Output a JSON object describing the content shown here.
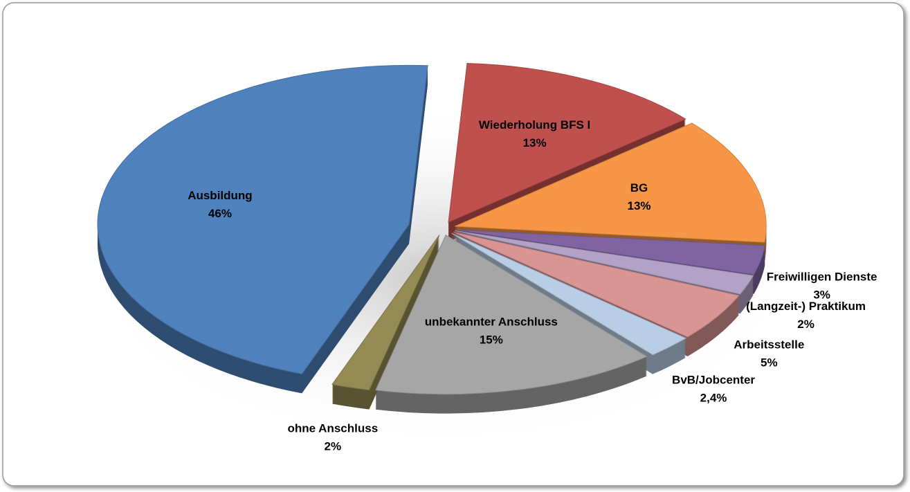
{
  "chart_data": {
    "type": "pie",
    "categories": [
      "Wiederholung BFS I",
      "BG",
      "Freiwilligen Dienste",
      "(Langzeit-) Praktikum",
      "Arbeitsstelle",
      "BvB/Jobcenter",
      "unbekannter Anschluss",
      "ohne Anschluss",
      "Ausbildung"
    ],
    "values": [
      13,
      13,
      3,
      2,
      5,
      2.4,
      15,
      2,
      46
    ],
    "value_labels": [
      "13%",
      "13%",
      "3%",
      "2%",
      "5%",
      "2,4%",
      "15%",
      "2%",
      "46%"
    ],
    "colors": [
      "#c0504d",
      "#f79646",
      "#8064a2",
      "#b3a2c7",
      "#d99594",
      "#b9cde5",
      "#a6a6a6",
      "#948a54",
      "#4f81bd"
    ]
  }
}
